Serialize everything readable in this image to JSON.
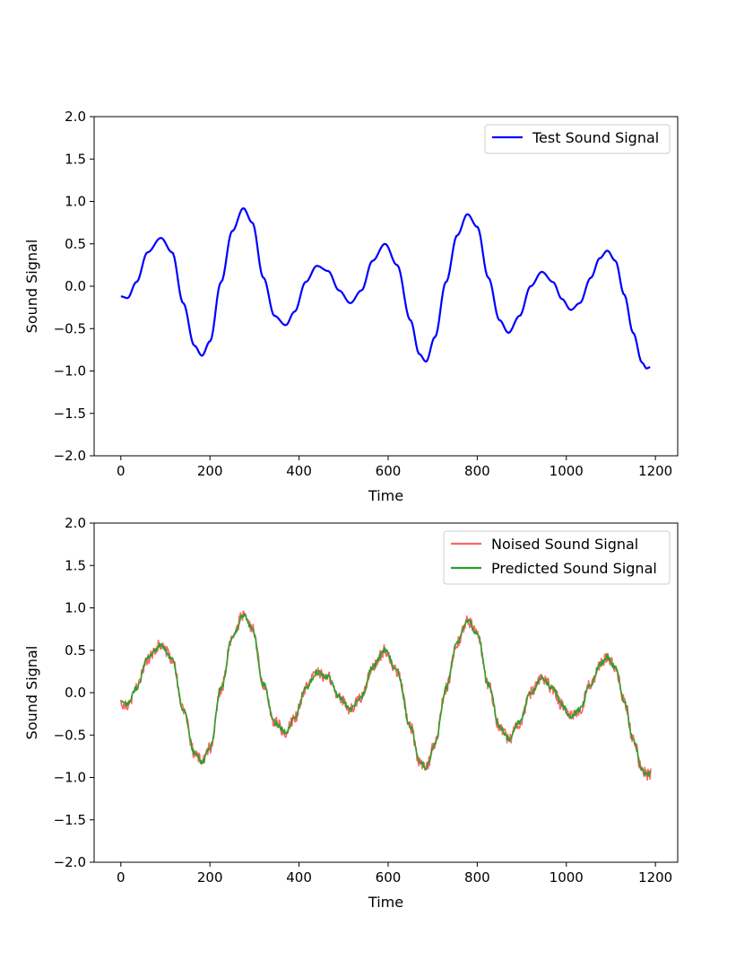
{
  "chart_data": [
    {
      "type": "line",
      "title": "",
      "xlabel": "Time",
      "ylabel": "Sound Signal",
      "xlim": [
        -60,
        1250
      ],
      "ylim": [
        -2.0,
        2.0
      ],
      "xticks": [
        0,
        200,
        400,
        600,
        800,
        1000,
        1200
      ],
      "yticks": [
        -2.0,
        -1.5,
        -1.0,
        -0.5,
        0.0,
        0.5,
        1.0,
        1.5,
        2.0
      ],
      "xtick_labels": [
        "0",
        "200",
        "400",
        "600",
        "800",
        "1000",
        "1200"
      ],
      "ytick_labels": [
        "−2.0",
        "−1.5",
        "−1.0",
        "−0.5",
        "0.0",
        "0.5",
        "1.0",
        "1.5",
        "2.0"
      ],
      "grid": false,
      "legend_position": "upper right",
      "series": [
        {
          "name": "Test Sound Signal",
          "color": "#0000ff",
          "points": [
            [
              0,
              -0.12
            ],
            [
              15,
              -0.14
            ],
            [
              35,
              0.05
            ],
            [
              60,
              0.4
            ],
            [
              90,
              0.57
            ],
            [
              115,
              0.4
            ],
            [
              140,
              -0.2
            ],
            [
              165,
              -0.7
            ],
            [
              182,
              -0.82
            ],
            [
              200,
              -0.65
            ],
            [
              225,
              0.05
            ],
            [
              250,
              0.65
            ],
            [
              275,
              0.92
            ],
            [
              295,
              0.75
            ],
            [
              320,
              0.1
            ],
            [
              345,
              -0.35
            ],
            [
              370,
              -0.46
            ],
            [
              390,
              -0.3
            ],
            [
              415,
              0.05
            ],
            [
              440,
              0.24
            ],
            [
              465,
              0.18
            ],
            [
              490,
              -0.05
            ],
            [
              515,
              -0.2
            ],
            [
              540,
              -0.05
            ],
            [
              565,
              0.3
            ],
            [
              593,
              0.5
            ],
            [
              620,
              0.25
            ],
            [
              650,
              -0.4
            ],
            [
              670,
              -0.8
            ],
            [
              685,
              -0.89
            ],
            [
              705,
              -0.6
            ],
            [
              730,
              0.05
            ],
            [
              755,
              0.6
            ],
            [
              778,
              0.85
            ],
            [
              800,
              0.7
            ],
            [
              825,
              0.1
            ],
            [
              850,
              -0.4
            ],
            [
              870,
              -0.55
            ],
            [
              895,
              -0.35
            ],
            [
              920,
              0.0
            ],
            [
              945,
              0.17
            ],
            [
              970,
              0.05
            ],
            [
              990,
              -0.15
            ],
            [
              1010,
              -0.28
            ],
            [
              1030,
              -0.2
            ],
            [
              1055,
              0.1
            ],
            [
              1075,
              0.33
            ],
            [
              1092,
              0.42
            ],
            [
              1110,
              0.3
            ],
            [
              1130,
              -0.1
            ],
            [
              1150,
              -0.55
            ],
            [
              1170,
              -0.9
            ],
            [
              1180,
              -0.97
            ],
            [
              1190,
              -0.95
            ]
          ]
        }
      ]
    },
    {
      "type": "line",
      "title": "",
      "xlabel": "Time",
      "ylabel": "Sound Signal",
      "xlim": [
        -60,
        1250
      ],
      "ylim": [
        -2.0,
        2.0
      ],
      "xticks": [
        0,
        200,
        400,
        600,
        800,
        1000,
        1200
      ],
      "yticks": [
        -2.0,
        -1.5,
        -1.0,
        -0.5,
        0.0,
        0.5,
        1.0,
        1.5,
        2.0
      ],
      "xtick_labels": [
        "0",
        "200",
        "400",
        "600",
        "800",
        "1000",
        "1200"
      ],
      "ytick_labels": [
        "−2.0",
        "−1.5",
        "−1.0",
        "−0.5",
        "0.0",
        "0.5",
        "1.0",
        "1.5",
        "2.0"
      ],
      "grid": false,
      "legend_position": "upper right",
      "series": [
        {
          "name": "Noised Sound Signal",
          "color": "#ff6666",
          "noise_amplitude": 0.07,
          "points": [
            [
              0,
              -0.12
            ],
            [
              15,
              -0.14
            ],
            [
              35,
              0.05
            ],
            [
              60,
              0.4
            ],
            [
              90,
              0.57
            ],
            [
              115,
              0.4
            ],
            [
              140,
              -0.2
            ],
            [
              165,
              -0.7
            ],
            [
              182,
              -0.82
            ],
            [
              200,
              -0.65
            ],
            [
              225,
              0.05
            ],
            [
              250,
              0.65
            ],
            [
              275,
              0.92
            ],
            [
              295,
              0.75
            ],
            [
              320,
              0.1
            ],
            [
              345,
              -0.35
            ],
            [
              370,
              -0.46
            ],
            [
              390,
              -0.3
            ],
            [
              415,
              0.05
            ],
            [
              440,
              0.24
            ],
            [
              465,
              0.18
            ],
            [
              490,
              -0.05
            ],
            [
              515,
              -0.2
            ],
            [
              540,
              -0.05
            ],
            [
              565,
              0.3
            ],
            [
              593,
              0.5
            ],
            [
              620,
              0.25
            ],
            [
              650,
              -0.4
            ],
            [
              670,
              -0.8
            ],
            [
              685,
              -0.89
            ],
            [
              705,
              -0.6
            ],
            [
              730,
              0.05
            ],
            [
              755,
              0.6
            ],
            [
              778,
              0.85
            ],
            [
              800,
              0.7
            ],
            [
              825,
              0.1
            ],
            [
              850,
              -0.4
            ],
            [
              870,
              -0.55
            ],
            [
              895,
              -0.35
            ],
            [
              920,
              0.0
            ],
            [
              945,
              0.17
            ],
            [
              970,
              0.05
            ],
            [
              990,
              -0.15
            ],
            [
              1010,
              -0.28
            ],
            [
              1030,
              -0.2
            ],
            [
              1055,
              0.1
            ],
            [
              1075,
              0.33
            ],
            [
              1092,
              0.42
            ],
            [
              1110,
              0.3
            ],
            [
              1130,
              -0.1
            ],
            [
              1150,
              -0.55
            ],
            [
              1170,
              -0.9
            ],
            [
              1180,
              -0.97
            ],
            [
              1190,
              -0.95
            ]
          ]
        },
        {
          "name": "Predicted Sound Signal",
          "color": "#2ca02c",
          "noise_amplitude": 0.03,
          "points": [
            [
              0,
              -0.12
            ],
            [
              15,
              -0.14
            ],
            [
              35,
              0.05
            ],
            [
              60,
              0.4
            ],
            [
              90,
              0.57
            ],
            [
              115,
              0.4
            ],
            [
              140,
              -0.2
            ],
            [
              165,
              -0.7
            ],
            [
              182,
              -0.82
            ],
            [
              200,
              -0.65
            ],
            [
              225,
              0.05
            ],
            [
              250,
              0.65
            ],
            [
              275,
              0.92
            ],
            [
              295,
              0.75
            ],
            [
              320,
              0.1
            ],
            [
              345,
              -0.35
            ],
            [
              370,
              -0.46
            ],
            [
              390,
              -0.3
            ],
            [
              415,
              0.05
            ],
            [
              440,
              0.24
            ],
            [
              465,
              0.18
            ],
            [
              490,
              -0.05
            ],
            [
              515,
              -0.2
            ],
            [
              540,
              -0.05
            ],
            [
              565,
              0.3
            ],
            [
              593,
              0.5
            ],
            [
              620,
              0.25
            ],
            [
              650,
              -0.4
            ],
            [
              670,
              -0.8
            ],
            [
              685,
              -0.89
            ],
            [
              705,
              -0.6
            ],
            [
              730,
              0.05
            ],
            [
              755,
              0.6
            ],
            [
              778,
              0.85
            ],
            [
              800,
              0.7
            ],
            [
              825,
              0.1
            ],
            [
              850,
              -0.4
            ],
            [
              870,
              -0.55
            ],
            [
              895,
              -0.35
            ],
            [
              920,
              0.0
            ],
            [
              945,
              0.17
            ],
            [
              970,
              0.05
            ],
            [
              990,
              -0.15
            ],
            [
              1010,
              -0.28
            ],
            [
              1030,
              -0.2
            ],
            [
              1055,
              0.1
            ],
            [
              1075,
              0.33
            ],
            [
              1092,
              0.42
            ],
            [
              1110,
              0.3
            ],
            [
              1130,
              -0.1
            ],
            [
              1150,
              -0.55
            ],
            [
              1170,
              -0.9
            ],
            [
              1180,
              -0.97
            ],
            [
              1190,
              -0.95
            ]
          ]
        }
      ]
    }
  ]
}
